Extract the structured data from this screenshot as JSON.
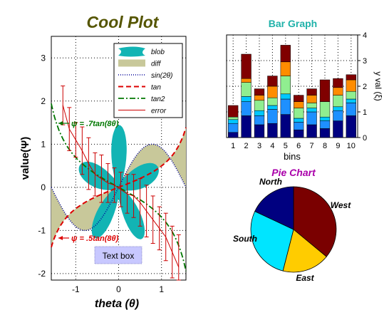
{
  "chart_data": [
    {
      "type": "area",
      "title": "Cool Plot",
      "xlabel": "theta (θ)",
      "ylabel": "value(Ψ)",
      "xlim": [
        -1.57,
        1.57
      ],
      "ylim": [
        -2.15,
        3.5
      ],
      "xticks": [
        "-1",
        "0",
        "1"
      ],
      "yticks": [
        "-2",
        "-1",
        "0",
        "1",
        "2",
        "3"
      ],
      "grid": true,
      "legend": "top-right",
      "legend_entries": [
        "blob",
        "diff",
        "sin(2θ)",
        "tan",
        "tan2",
        "error"
      ],
      "series_colors": {
        "blob": "#12b4b4",
        "diff": "#c8c89a",
        "sin": "#000099",
        "tan": "#dd0000",
        "tan2": "#007700",
        "error": "#cc0000"
      },
      "error_bars": {
        "x": [
          -1.3,
          -1.15,
          -1.0,
          -0.85,
          -0.7,
          -0.55,
          -0.4,
          -0.25,
          -0.1,
          0.05,
          0.2,
          0.35,
          0.5,
          0.65,
          0.8,
          0.95,
          1.1,
          1.25,
          1.4
        ],
        "y": [
          1.9,
          1.35,
          1.1,
          0.85,
          0.55,
          0.3,
          0.2,
          0.1,
          0.05,
          -0.05,
          -0.15,
          -0.2,
          -0.35,
          -0.55,
          -0.75,
          -0.95,
          -1.15,
          -1.5,
          -1.85
        ],
        "err": [
          0.45,
          0.5,
          0.4,
          0.55,
          0.6,
          0.5,
          0.55,
          0.45,
          0.4,
          0.4,
          0.45,
          0.5,
          0.55,
          0.6,
          0.55,
          0.5,
          0.55,
          0.6,
          0.75
        ]
      },
      "annotations": [
        "ψ = .7tan(8θ)",
        "ψ = .5tan(8θ)",
        "Text box"
      ]
    },
    {
      "type": "bar",
      "title": "Bar Graph",
      "xlabel": "bins",
      "ylabel": "y val (ξ)",
      "categories": [
        "1",
        "2",
        "3",
        "4",
        "5",
        "6",
        "7",
        "8",
        "9",
        "10"
      ],
      "ylim": [
        0,
        4
      ],
      "yticks": [
        "0",
        "1",
        "2",
        "3",
        "4"
      ],
      "stacked": true,
      "series": [
        {
          "color": "#000080",
          "values": [
            0.2,
            0.85,
            0.5,
            0.55,
            0.9,
            0.3,
            0.5,
            0.35,
            0.65,
            0.85
          ]
        },
        {
          "color": "#1e90ff",
          "values": [
            0.35,
            0.55,
            0.35,
            0.55,
            0.6,
            0.3,
            0.5,
            0.3,
            0.4,
            0.5
          ]
        },
        {
          "color": "#00c8ff",
          "values": [
            0.15,
            0.2,
            0.2,
            0.15,
            0.2,
            0.15,
            0.15,
            0.15,
            0.15,
            0.15
          ]
        },
        {
          "color": "#90ee90",
          "values": [
            0.1,
            0.55,
            0.4,
            0.3,
            0.7,
            0.4,
            0.2,
            0.6,
            0.45,
            0.3
          ]
        },
        {
          "color": "#ff8c00",
          "values": [
            0.0,
            0.15,
            0.2,
            0.45,
            0.55,
            0.25,
            0.3,
            0.0,
            0.3,
            0.45
          ]
        },
        {
          "color": "#800000",
          "values": [
            0.45,
            0.95,
            0.25,
            0.4,
            0.65,
            0.25,
            0.25,
            0.85,
            0.35,
            0.2
          ]
        }
      ]
    },
    {
      "type": "pie",
      "title": "Pie Chart",
      "categories": [
        "West",
        "East",
        "South",
        "North"
      ],
      "values": [
        36,
        18,
        28,
        18
      ],
      "colors": [
        "#7a0000",
        "#ffcc00",
        "#00e5ff",
        "#000080"
      ]
    }
  ]
}
